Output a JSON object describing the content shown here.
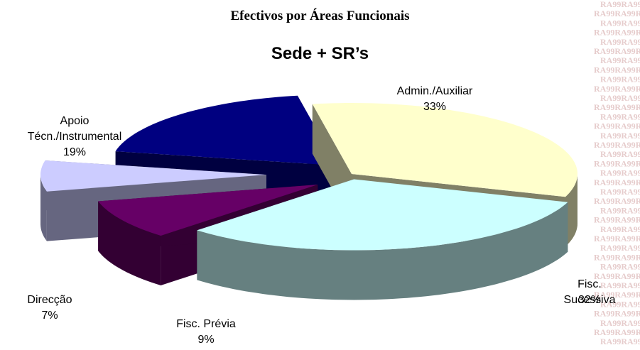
{
  "chart_data": {
    "type": "pie3d",
    "title": "Efectivos por Áreas Funcionais",
    "subtitle": "Sede + SR’s",
    "watermark": "RA99",
    "categories": [
      "Admin./Auxiliar",
      "Fisc. Sucessiva",
      "Fisc. Prévia",
      "Direcção",
      "Apoio\nTécn./Instrumental"
    ],
    "values": [
      33,
      32,
      9,
      7,
      19
    ],
    "value_labels": [
      "33%",
      "32%",
      "9%",
      "7%",
      "19%"
    ],
    "colors": [
      "#ffffcc",
      "#ccffff",
      "#660066",
      "#ccccff",
      "#000080"
    ]
  }
}
